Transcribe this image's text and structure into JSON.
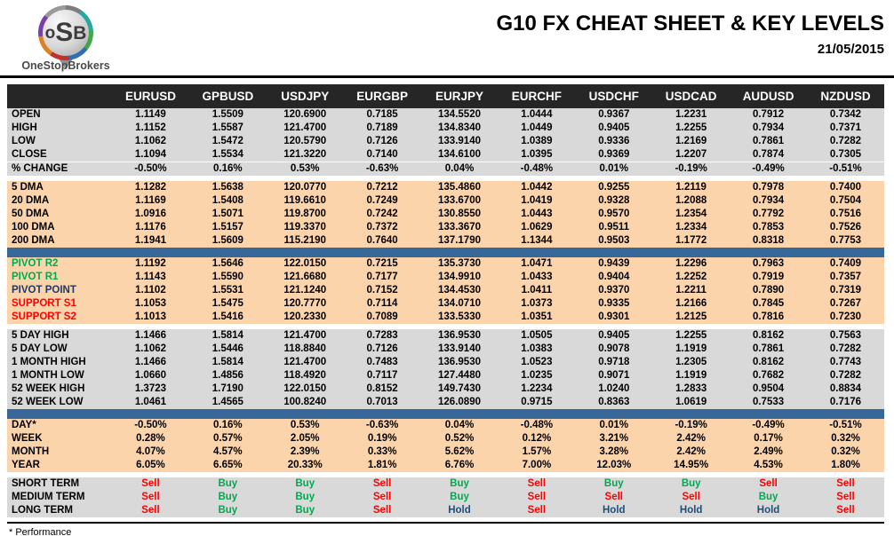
{
  "brand": {
    "logo_letters": [
      "o",
      "S",
      "B"
    ],
    "logo_caption": "OneStopBrokers"
  },
  "header": {
    "title": "G10 FX CHEAT SHEET & KEY LEVELS",
    "date": "21/05/2015"
  },
  "colors": {
    "header_bg": "#262626",
    "gray": "#D9D9D9",
    "peach": "#FBD4AC",
    "blue_bar": "#38689A",
    "green": "#00A94F",
    "red": "#FF0000",
    "navy": "#1F3864",
    "hold_navy": "#1F4E79"
  },
  "signal_colors": {
    "Buy": "green",
    "Sell": "red",
    "Hold": "hold_navy"
  },
  "table": {
    "columns": [
      "EURUSD",
      "GPBUSD",
      "USDJPY",
      "EURGBP",
      "EURJPY",
      "EURCHF",
      "USDCHF",
      "USDCAD",
      "AUDUSD",
      "NZDUSD"
    ],
    "sections": [
      {
        "id": "ohlc",
        "bg": "gray",
        "separator_above": null,
        "rows": [
          {
            "label": "OPEN",
            "values": [
              "1.1149",
              "1.5509",
              "120.6900",
              "0.7185",
              "134.5520",
              "1.0444",
              "0.9367",
              "1.2231",
              "0.7912",
              "0.7342"
            ]
          },
          {
            "label": "HIGH",
            "values": [
              "1.1152",
              "1.5587",
              "121.4700",
              "0.7189",
              "134.8340",
              "1.0449",
              "0.9405",
              "1.2255",
              "0.7934",
              "0.7371"
            ]
          },
          {
            "label": "LOW",
            "values": [
              "1.1062",
              "1.5472",
              "120.5790",
              "0.7126",
              "133.9140",
              "1.0389",
              "0.9336",
              "1.2169",
              "0.7861",
              "0.7282"
            ]
          },
          {
            "label": "CLOSE",
            "values": [
              "1.1094",
              "1.5534",
              "121.3220",
              "0.7140",
              "134.6100",
              "1.0395",
              "0.9369",
              "1.2207",
              "0.7874",
              "0.7305"
            ]
          },
          {
            "label": "% CHANGE",
            "divider_above": true,
            "values": [
              "-0.50%",
              "0.16%",
              "0.53%",
              "-0.63%",
              "0.04%",
              "-0.48%",
              "0.01%",
              "-0.19%",
              "-0.49%",
              "-0.51%"
            ]
          }
        ]
      },
      {
        "id": "moving-averages",
        "bg": "peach",
        "separator_above": "gap",
        "rows": [
          {
            "label": "5 DMA",
            "values": [
              "1.1282",
              "1.5638",
              "120.0770",
              "0.7212",
              "135.4860",
              "1.0442",
              "0.9255",
              "1.2119",
              "0.7978",
              "0.7400"
            ]
          },
          {
            "label": "20 DMA",
            "values": [
              "1.1169",
              "1.5408",
              "119.6610",
              "0.7249",
              "133.6700",
              "1.0419",
              "0.9328",
              "1.2088",
              "0.7934",
              "0.7504"
            ]
          },
          {
            "label": "50 DMA",
            "values": [
              "1.0916",
              "1.5071",
              "119.8700",
              "0.7242",
              "130.8550",
              "1.0443",
              "0.9570",
              "1.2354",
              "0.7792",
              "0.7516"
            ]
          },
          {
            "label": "100 DMA",
            "values": [
              "1.1176",
              "1.5157",
              "119.3370",
              "0.7372",
              "133.3670",
              "1.0629",
              "0.9511",
              "1.2334",
              "0.7853",
              "0.7526"
            ]
          },
          {
            "label": "200 DMA",
            "values": [
              "1.1941",
              "1.5609",
              "115.2190",
              "0.7640",
              "137.1790",
              "1.1344",
              "0.9503",
              "1.1772",
              "0.8318",
              "0.7753"
            ]
          }
        ]
      },
      {
        "id": "pivots",
        "bg": "peach",
        "separator_above": "blue",
        "rows": [
          {
            "label": "PIVOT R2",
            "label_color": "green",
            "values": [
              "1.1192",
              "1.5646",
              "122.0150",
              "0.7215",
              "135.3730",
              "1.0471",
              "0.9439",
              "1.2296",
              "0.7963",
              "0.7409"
            ]
          },
          {
            "label": "PIVOT R1",
            "label_color": "green",
            "values": [
              "1.1143",
              "1.5590",
              "121.6680",
              "0.7177",
              "134.9910",
              "1.0433",
              "0.9404",
              "1.2252",
              "0.7919",
              "0.7357"
            ]
          },
          {
            "label": "PIVOT POINT",
            "label_color": "navy",
            "values": [
              "1.1102",
              "1.5531",
              "121.1240",
              "0.7152",
              "134.4530",
              "1.0411",
              "0.9370",
              "1.2211",
              "0.7890",
              "0.7319"
            ]
          },
          {
            "label": "SUPPORT S1",
            "label_color": "red",
            "values": [
              "1.1053",
              "1.5475",
              "120.7770",
              "0.7114",
              "134.0710",
              "1.0373",
              "0.9335",
              "1.2166",
              "0.7845",
              "0.7267"
            ]
          },
          {
            "label": "SUPPORT S2",
            "label_color": "red",
            "values": [
              "1.1013",
              "1.5416",
              "120.2330",
              "0.7089",
              "133.5330",
              "1.0351",
              "0.9301",
              "1.2125",
              "0.7816",
              "0.7230"
            ]
          }
        ]
      },
      {
        "id": "ranges",
        "bg": "gray",
        "separator_above": "gap",
        "rows": [
          {
            "label": "5 DAY HIGH",
            "values": [
              "1.1466",
              "1.5814",
              "121.4700",
              "0.7283",
              "136.9530",
              "1.0505",
              "0.9405",
              "1.2255",
              "0.8162",
              "0.7563"
            ]
          },
          {
            "label": "5 DAY LOW",
            "values": [
              "1.1062",
              "1.5446",
              "118.8840",
              "0.7126",
              "133.9140",
              "1.0383",
              "0.9078",
              "1.1919",
              "0.7861",
              "0.7282"
            ]
          },
          {
            "label": "1 MONTH HIGH",
            "values": [
              "1.1466",
              "1.5814",
              "121.4700",
              "0.7483",
              "136.9530",
              "1.0523",
              "0.9718",
              "1.2305",
              "0.8162",
              "0.7743"
            ]
          },
          {
            "label": "1 MONTH LOW",
            "values": [
              "1.0660",
              "1.4856",
              "118.4920",
              "0.7117",
              "127.4480",
              "1.0235",
              "0.9071",
              "1.1919",
              "0.7682",
              "0.7282"
            ]
          },
          {
            "label": "52 WEEK HIGH",
            "values": [
              "1.3723",
              "1.7190",
              "122.0150",
              "0.8152",
              "149.7430",
              "1.2234",
              "1.0240",
              "1.2833",
              "0.9504",
              "0.8834"
            ]
          },
          {
            "label": "52 WEEK LOW",
            "values": [
              "1.0461",
              "1.4565",
              "100.8240",
              "0.7013",
              "126.0890",
              "0.9715",
              "0.8363",
              "1.0619",
              "0.7533",
              "0.7176"
            ]
          }
        ]
      },
      {
        "id": "performance",
        "bg": "peach",
        "separator_above": "blue",
        "rows": [
          {
            "label": "DAY*",
            "values": [
              "-0.50%",
              "0.16%",
              "0.53%",
              "-0.63%",
              "0.04%",
              "-0.48%",
              "0.01%",
              "-0.19%",
              "-0.49%",
              "-0.51%"
            ]
          },
          {
            "label": "WEEK",
            "values": [
              "0.28%",
              "0.57%",
              "2.05%",
              "0.19%",
              "0.52%",
              "0.12%",
              "3.21%",
              "2.42%",
              "0.17%",
              "0.32%"
            ]
          },
          {
            "label": "MONTH",
            "values": [
              "4.07%",
              "4.57%",
              "2.39%",
              "0.33%",
              "5.62%",
              "1.57%",
              "3.28%",
              "2.42%",
              "2.49%",
              "0.32%"
            ]
          },
          {
            "label": "YEAR",
            "values": [
              "6.05%",
              "6.65%",
              "20.33%",
              "1.81%",
              "6.76%",
              "7.00%",
              "12.03%",
              "14.95%",
              "4.53%",
              "1.80%"
            ]
          }
        ]
      },
      {
        "id": "signals",
        "bg": "gray",
        "separator_above": "gap",
        "value_color_map": true,
        "rows": [
          {
            "label": "SHORT TERM",
            "values": [
              "Sell",
              "Buy",
              "Buy",
              "Sell",
              "Buy",
              "Sell",
              "Buy",
              "Buy",
              "Sell",
              "Sell"
            ]
          },
          {
            "label": "MEDIUM TERM",
            "values": [
              "Sell",
              "Buy",
              "Buy",
              "Sell",
              "Buy",
              "Sell",
              "Sell",
              "Sell",
              "Buy",
              "Sell"
            ]
          },
          {
            "label": "LONG TERM",
            "values": [
              "Sell",
              "Buy",
              "Buy",
              "Sell",
              "Hold",
              "Sell",
              "Hold",
              "Hold",
              "Hold",
              "Sell"
            ]
          }
        ]
      }
    ]
  },
  "footnote": "* Performance"
}
